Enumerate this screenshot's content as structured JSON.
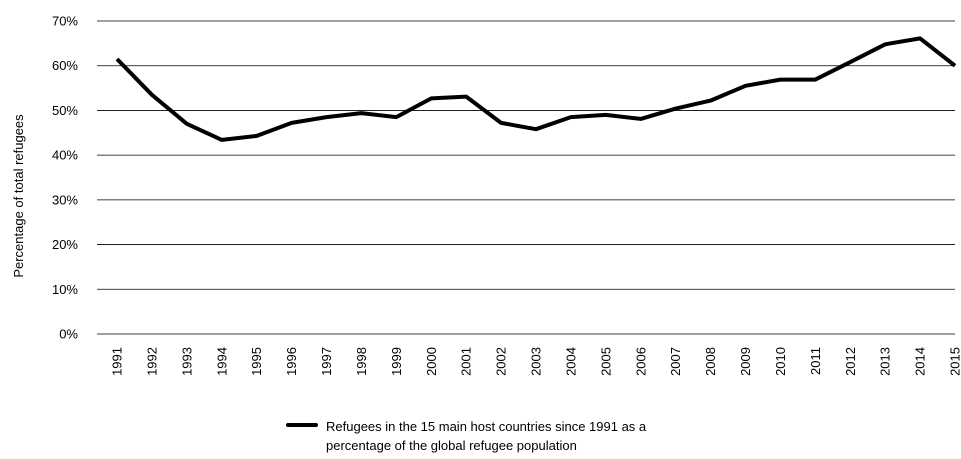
{
  "chart_data": {
    "type": "line",
    "title": "",
    "xlabel": "",
    "ylabel": "Percentage of total refugees",
    "ylim": [
      0,
      70
    ],
    "y_ticks": [
      "0%",
      "10%",
      "20%",
      "30%",
      "40%",
      "50%",
      "60%",
      "70%"
    ],
    "grid": true,
    "legend_position": "bottom",
    "categories": [
      "1991",
      "1992",
      "1993",
      "1994",
      "1995",
      "1996",
      "1997",
      "1998",
      "1999",
      "2000",
      "2001",
      "2002",
      "2003",
      "2004",
      "2005",
      "2006",
      "2007",
      "2008",
      "2009",
      "2010",
      "2011",
      "2012",
      "2013",
      "2014",
      "2015"
    ],
    "series": [
      {
        "name": "Refugees in the 15 main host countries since 1991 as a percentage of the global refugee population",
        "color": "#000000",
        "values": [
          61.5,
          53.5,
          47,
          43.4,
          44.3,
          47.2,
          48.5,
          49.4,
          48.5,
          52.7,
          53.1,
          47.2,
          45.8,
          48.5,
          49,
          48.1,
          50.4,
          52.2,
          55.5,
          56.9,
          56.9,
          60.8,
          64.8,
          66.1,
          60
        ]
      }
    ]
  },
  "legend": {
    "line1": "Refugees in the 15 main host countries since 1991 as a",
    "line2": "percentage of the global refugee population"
  }
}
